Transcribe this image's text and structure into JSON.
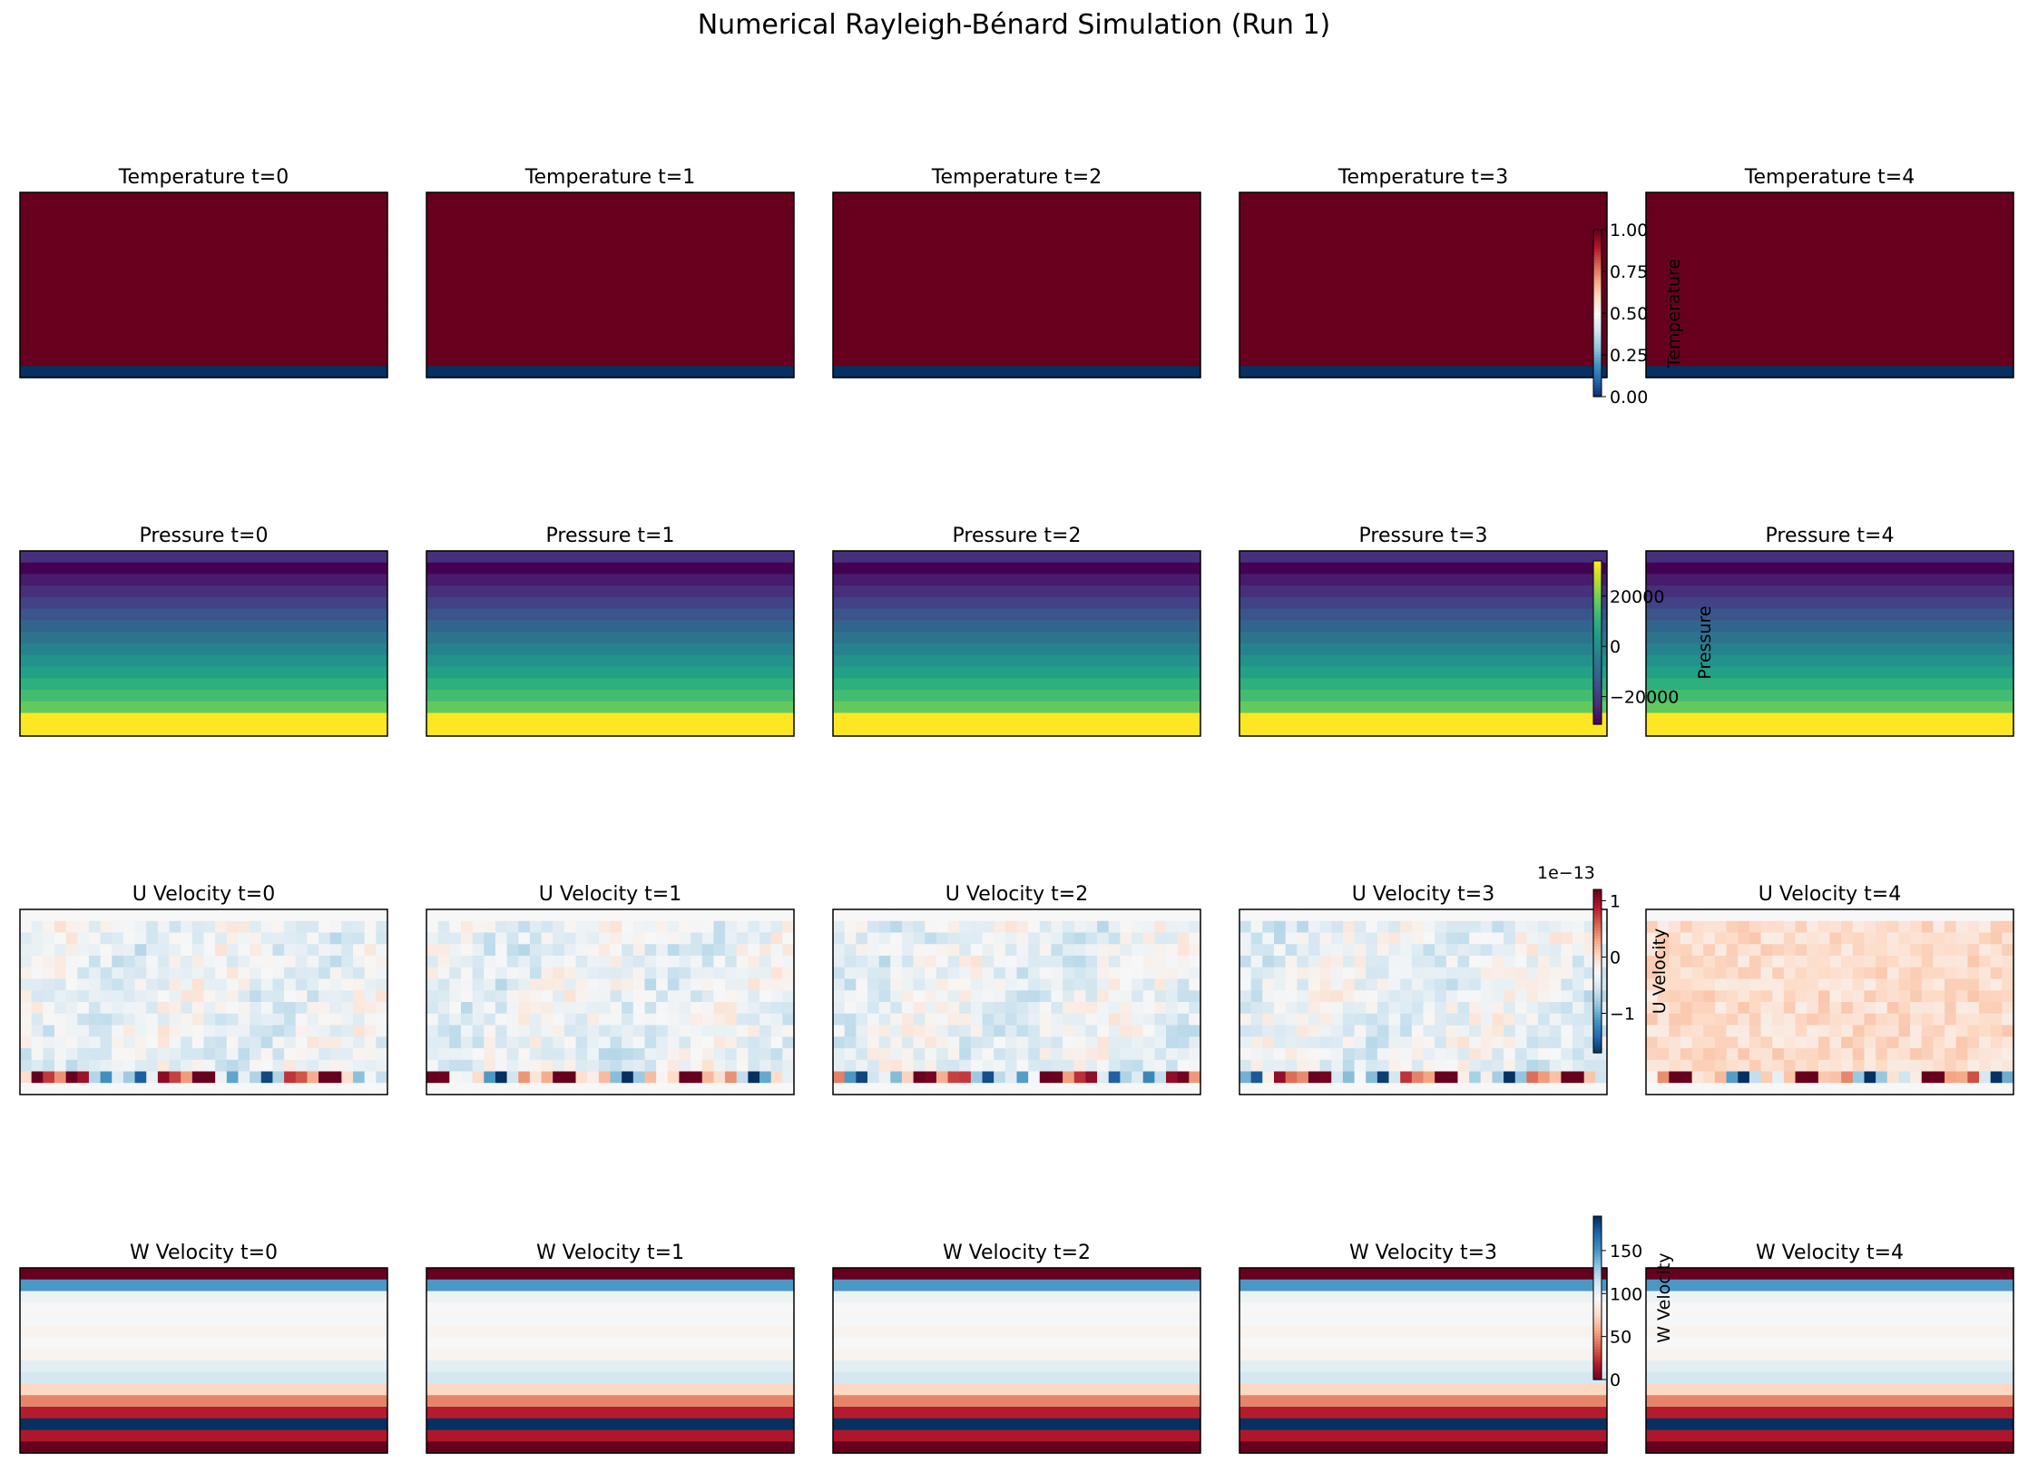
{
  "figure": {
    "title": "Numerical Rayleigh-Bénard Simulation (Run 1)"
  },
  "chart_data": {
    "type": "heatmap",
    "title": "Numerical Rayleigh-Bénard Simulation (Run 1)",
    "grid": false,
    "time_steps": [
      0,
      1,
      2,
      3,
      4
    ],
    "grid_shape": {
      "rows": 16,
      "cols": 32
    },
    "fields": [
      {
        "name": "Temperature",
        "panel_titles": [
          "Temperature t=0",
          "Temperature t=1",
          "Temperature t=2",
          "Temperature t=3",
          "Temperature t=4"
        ],
        "colormap": "RdBu_r",
        "colorbar": {
          "label": "Temperature",
          "range": [
            0,
            1
          ],
          "ticks": [
            0.0,
            0.25,
            0.5,
            0.75,
            1.0
          ],
          "tick_labels": [
            "0.00",
            "0.25",
            "0.50",
            "0.75",
            "1.00"
          ],
          "offset_text": ""
        },
        "row_values": [
          1,
          1,
          1,
          1,
          1,
          1,
          1,
          1,
          1,
          1,
          1,
          1,
          1,
          1,
          1,
          0
        ]
      },
      {
        "name": "Pressure",
        "panel_titles": [
          "Pressure t=0",
          "Pressure t=1",
          "Pressure t=2",
          "Pressure t=3",
          "Pressure t=4"
        ],
        "colormap": "viridis",
        "colorbar": {
          "label": "Pressure",
          "range": [
            -31000,
            34000
          ],
          "ticks": [
            -20000,
            0,
            20000
          ],
          "tick_labels": [
            "−20000",
            "0",
            "20000"
          ],
          "offset_text": ""
        },
        "row_values": [
          -22000,
          -31000,
          -26000,
          -22000,
          -18000,
          -14000,
          -10000,
          -6000,
          -2000,
          2000,
          6000,
          10000,
          14000,
          18000,
          34000,
          34000
        ]
      },
      {
        "name": "U Velocity",
        "panel_titles": [
          "U Velocity t=0",
          "U Velocity t=1",
          "U Velocity t=2",
          "U Velocity t=3",
          "U Velocity t=4"
        ],
        "colormap": "RdBu_r",
        "colorbar": {
          "label": "U Velocity",
          "range": [
            -1.7,
            1.2
          ],
          "ticks": [
            -1,
            0,
            1
          ],
          "tick_labels": [
            "−1",
            "0",
            "1"
          ],
          "offset_text": "1e−13"
        },
        "bottom_rows_note": "noisy small values (order 1e-13); rows 15 shows strongest variation"
      },
      {
        "name": "W Velocity",
        "panel_titles": [
          "W Velocity t=0",
          "W Velocity t=1",
          "W Velocity t=2",
          "W Velocity t=3",
          "W Velocity t=4"
        ],
        "colormap": "RdBu",
        "colorbar": {
          "label": "W Velocity",
          "range": [
            0,
            190
          ],
          "ticks": [
            0,
            50,
            100,
            150
          ],
          "tick_labels": [
            "0",
            "50",
            "100",
            "150"
          ],
          "offset_text": ""
        },
        "row_values": [
          0,
          150,
          100,
          95,
          96,
          92,
          95,
          92,
          105,
          112,
          75,
          48,
          20,
          190,
          18,
          0
        ]
      }
    ]
  }
}
